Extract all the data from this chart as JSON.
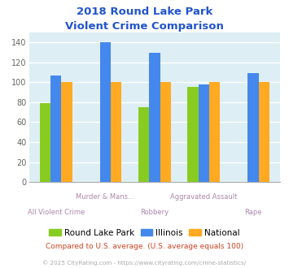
{
  "title_line1": "2018 Round Lake Park",
  "title_line2": "Violent Crime Comparison",
  "title_color": "#2255cc",
  "categories": [
    "All Violent Crime",
    "Murder & Mans...",
    "Robbery",
    "Aggravated Assault",
    "Rape"
  ],
  "series": {
    "Round Lake Park": {
      "values": [
        79,
        0,
        75,
        95,
        0
      ],
      "color": "#88cc22"
    },
    "Illinois": {
      "values": [
        107,
        140,
        129,
        98,
        109
      ],
      "color": "#4488ee"
    },
    "National": {
      "values": [
        100,
        100,
        100,
        100,
        100
      ],
      "color": "#ffaa22"
    }
  },
  "ylim": [
    0,
    150
  ],
  "yticks": [
    0,
    20,
    40,
    60,
    80,
    100,
    120,
    140
  ],
  "plot_bg_color": "#ddeef4",
  "legend_labels": [
    "Round Lake Park",
    "Illinois",
    "National"
  ],
  "legend_colors": [
    "#88cc22",
    "#4488ee",
    "#ffaa22"
  ],
  "xlabel_color": "#aa88aa",
  "grid_color": "#ffffff",
  "footnote1": "Compared to U.S. average. (U.S. average equals 100)",
  "footnote2": "© 2025 CityRating.com - https://www.cityrating.com/crime-statistics/",
  "footnote1_color": "#cc4422",
  "footnote2_color": "#aaaaaa",
  "bar_width": 0.22
}
